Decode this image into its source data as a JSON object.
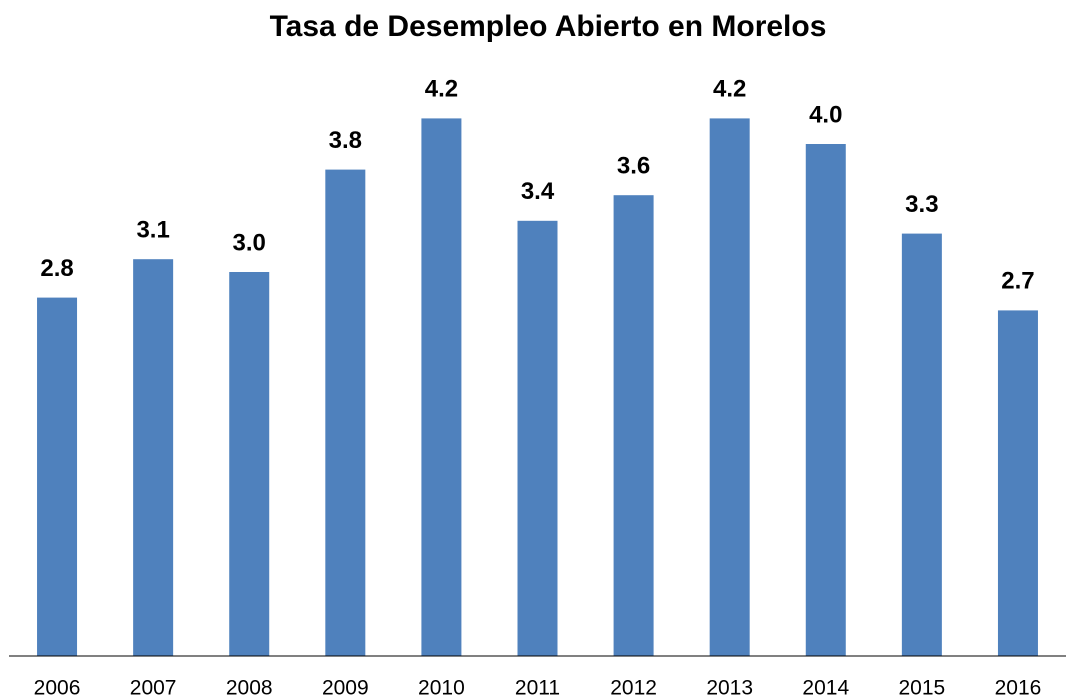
{
  "chart_data": {
    "type": "bar",
    "title": "Tasa de Desempleo Abierto en Morelos",
    "categories": [
      "2006",
      "2007",
      "2008",
      "2009",
      "2010",
      "2011",
      "2012",
      "2013",
      "2014",
      "2015",
      "2016"
    ],
    "values": [
      2.8,
      3.1,
      3.0,
      3.8,
      4.2,
      3.4,
      3.6,
      4.2,
      4.0,
      3.3,
      2.7
    ],
    "value_labels": [
      "2.8",
      "3.1",
      "3.0",
      "3.8",
      "4.2",
      "3.4",
      "3.6",
      "4.2",
      "4.0",
      "3.3",
      "2.7"
    ],
    "color": "#4f81bd",
    "ylim": [
      0,
      5
    ]
  }
}
